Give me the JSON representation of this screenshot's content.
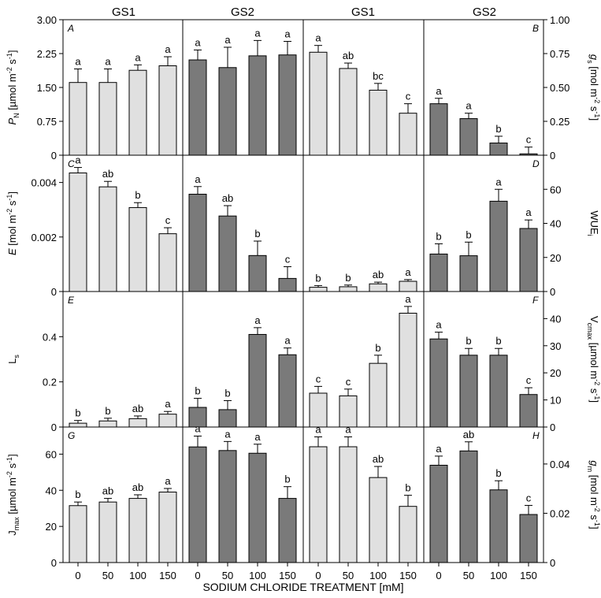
{
  "figure": {
    "x_axis_label": "SODIUM CHLORIDE TREATMENT [mM]",
    "column_headers": [
      "GS1",
      "GS2",
      "GS1",
      "GS2"
    ],
    "colors": {
      "gs1_bar": "#e0e0e0",
      "gs2_bar": "#7a7a7a",
      "axis": "#000000",
      "background": "#ffffff"
    }
  },
  "chart_data": [
    {
      "type": "bar",
      "panel": "A",
      "side": "left",
      "row": 0,
      "ylabel": "PN [µmol m-2 s-1]",
      "ylim": [
        0,
        3.0
      ],
      "ticks": [
        "0",
        "0.75",
        "1.50",
        "2.25",
        "3.00"
      ],
      "tick_values": [
        0,
        0.75,
        1.5,
        2.25,
        3.0
      ],
      "categories": [
        "0",
        "50",
        "100",
        "150"
      ],
      "series": [
        {
          "name": "GS1",
          "values": [
            1.61,
            1.61,
            1.88,
            1.98
          ],
          "errors": [
            0.3,
            0.3,
            0.12,
            0.2
          ],
          "letters": [
            "a",
            "a",
            "a",
            "a"
          ]
        },
        {
          "name": "GS2",
          "values": [
            2.11,
            1.94,
            2.2,
            2.22
          ],
          "errors": [
            0.22,
            0.45,
            0.34,
            0.3
          ],
          "letters": [
            "a",
            "a",
            "a",
            "a"
          ]
        }
      ]
    },
    {
      "type": "bar",
      "panel": "B",
      "side": "right",
      "row": 0,
      "ylabel": "gs [mol m-2 s-1]",
      "ylim": [
        0,
        1.0
      ],
      "ticks": [
        "0",
        "0.25",
        "0.50",
        "0.75",
        "1.00"
      ],
      "tick_values": [
        0,
        0.25,
        0.5,
        0.75,
        1.0
      ],
      "categories": [
        "0",
        "50",
        "100",
        "150"
      ],
      "series": [
        {
          "name": "GS1",
          "values": [
            0.76,
            0.64,
            0.48,
            0.31
          ],
          "errors": [
            0.05,
            0.04,
            0.05,
            0.07
          ],
          "letters": [
            "a",
            "ab",
            "bc",
            "c"
          ]
        },
        {
          "name": "GS2",
          "values": [
            0.38,
            0.27,
            0.09,
            0.01
          ],
          "errors": [
            0.04,
            0.04,
            0.05,
            0.05
          ],
          "letters": [
            "a",
            "a",
            "b",
            "c"
          ]
        }
      ]
    },
    {
      "type": "bar",
      "panel": "C",
      "side": "left",
      "row": 1,
      "ylabel": "E [mol m-2 s-1]",
      "ylim": [
        0,
        0.005
      ],
      "ticks": [
        "0",
        "0.002",
        "0.004"
      ],
      "tick_values": [
        0,
        0.002,
        0.004
      ],
      "categories": [
        "0",
        "50",
        "100",
        "150"
      ],
      "series": [
        {
          "name": "GS1",
          "values": [
            0.00435,
            0.00384,
            0.00308,
            0.00212
          ],
          "errors": [
            0.0002,
            0.0002,
            0.00018,
            0.00022
          ],
          "letters": [
            "a",
            "ab",
            "b",
            "c"
          ]
        },
        {
          "name": "GS2",
          "values": [
            0.00357,
            0.00277,
            0.00132,
            0.00048
          ],
          "errors": [
            0.00028,
            0.00038,
            0.00053,
            0.00043
          ],
          "letters": [
            "a",
            "ab",
            "b",
            "c"
          ]
        }
      ]
    },
    {
      "type": "bar",
      "panel": "D",
      "side": "right",
      "row": 1,
      "ylabel": "WUEi",
      "ylim": [
        0,
        80
      ],
      "ticks": [
        "0",
        "20",
        "40",
        "60"
      ],
      "tick_values": [
        0,
        20,
        40,
        60
      ],
      "categories": [
        "0",
        "50",
        "100",
        "150"
      ],
      "series": [
        {
          "name": "GS1",
          "values": [
            2.5,
            2.8,
            4.5,
            6.0
          ],
          "errors": [
            1.0,
            1.0,
            1.0,
            1.0
          ],
          "letters": [
            "b",
            "b",
            "ab",
            "a"
          ]
        },
        {
          "name": "GS2",
          "values": [
            22,
            21,
            53,
            37
          ],
          "errors": [
            6,
            8,
            7,
            5
          ],
          "letters": [
            "b",
            "b",
            "a",
            "a"
          ]
        }
      ]
    },
    {
      "type": "bar",
      "panel": "E",
      "side": "left",
      "row": 2,
      "ylabel": "Ls",
      "ylim": [
        0,
        0.6
      ],
      "ticks": [
        "0",
        "0.2",
        "0.4"
      ],
      "tick_values": [
        0,
        0.2,
        0.4
      ],
      "categories": [
        "0",
        "50",
        "100",
        "150"
      ],
      "series": [
        {
          "name": "GS1",
          "values": [
            0.017,
            0.027,
            0.037,
            0.057
          ],
          "errors": [
            0.012,
            0.012,
            0.012,
            0.012
          ],
          "letters": [
            "b",
            "b",
            "ab",
            "a"
          ]
        },
        {
          "name": "GS2",
          "values": [
            0.087,
            0.077,
            0.41,
            0.32
          ],
          "errors": [
            0.04,
            0.04,
            0.03,
            0.03
          ],
          "letters": [
            "b",
            "b",
            "a",
            "a"
          ]
        }
      ]
    },
    {
      "type": "bar",
      "panel": "F",
      "side": "right",
      "row": 2,
      "ylabel": "Vcmax [µmol m-2 s-1]",
      "ylim": [
        0,
        50
      ],
      "ticks": [
        "0",
        "10",
        "20",
        "30",
        "40"
      ],
      "tick_values": [
        0,
        10,
        20,
        30,
        40
      ],
      "categories": [
        "0",
        "50",
        "100",
        "150"
      ],
      "series": [
        {
          "name": "GS1",
          "values": [
            12.5,
            11.5,
            23.5,
            42
          ],
          "errors": [
            2.5,
            2.5,
            3,
            2.5
          ],
          "letters": [
            "c",
            "c",
            "b",
            "a"
          ]
        },
        {
          "name": "GS2",
          "values": [
            32.5,
            26.5,
            26.5,
            12
          ],
          "errors": [
            2.5,
            2.5,
            2.5,
            2.5
          ],
          "letters": [
            "a",
            "b",
            "b",
            "c"
          ]
        }
      ]
    },
    {
      "type": "bar",
      "panel": "G",
      "side": "left",
      "row": 3,
      "ylabel": "Jmax [µmol m-2 s-1]",
      "ylim": [
        0,
        75
      ],
      "ticks": [
        "0",
        "20",
        "40",
        "60"
      ],
      "tick_values": [
        0,
        20,
        40,
        60
      ],
      "categories": [
        "0",
        "50",
        "100",
        "150"
      ],
      "series": [
        {
          "name": "GS1",
          "values": [
            31.5,
            33.5,
            35.5,
            39
          ],
          "errors": [
            2,
            2,
            2,
            2
          ],
          "letters": [
            "b",
            "ab",
            "ab",
            "a"
          ]
        },
        {
          "name": "GS2",
          "values": [
            64,
            62,
            60.5,
            35.5
          ],
          "errors": [
            6,
            5,
            5,
            6.5
          ],
          "letters": [
            "a",
            "a",
            "a",
            "b"
          ]
        }
      ]
    },
    {
      "type": "bar",
      "panel": "H",
      "side": "right",
      "row": 3,
      "ylabel": "gm [mol m-2 s-1]",
      "ylim": [
        0,
        0.055
      ],
      "ticks": [
        "0",
        "0.02",
        "0.04"
      ],
      "tick_values": [
        0,
        0.02,
        0.04
      ],
      "categories": [
        "0",
        "50",
        "100",
        "150"
      ],
      "series": [
        {
          "name": "GS1",
          "values": [
            0.047,
            0.047,
            0.0345,
            0.0228
          ],
          "errors": [
            0.004,
            0.004,
            0.0045,
            0.0045
          ],
          "letters": [
            "a",
            "a",
            "ab",
            "b"
          ]
        },
        {
          "name": "GS2",
          "values": [
            0.0395,
            0.0453,
            0.0295,
            0.0195
          ],
          "errors": [
            0.0037,
            0.0037,
            0.0037,
            0.0037
          ],
          "letters": [
            "a",
            "ab",
            "b",
            "c"
          ]
        }
      ]
    }
  ]
}
